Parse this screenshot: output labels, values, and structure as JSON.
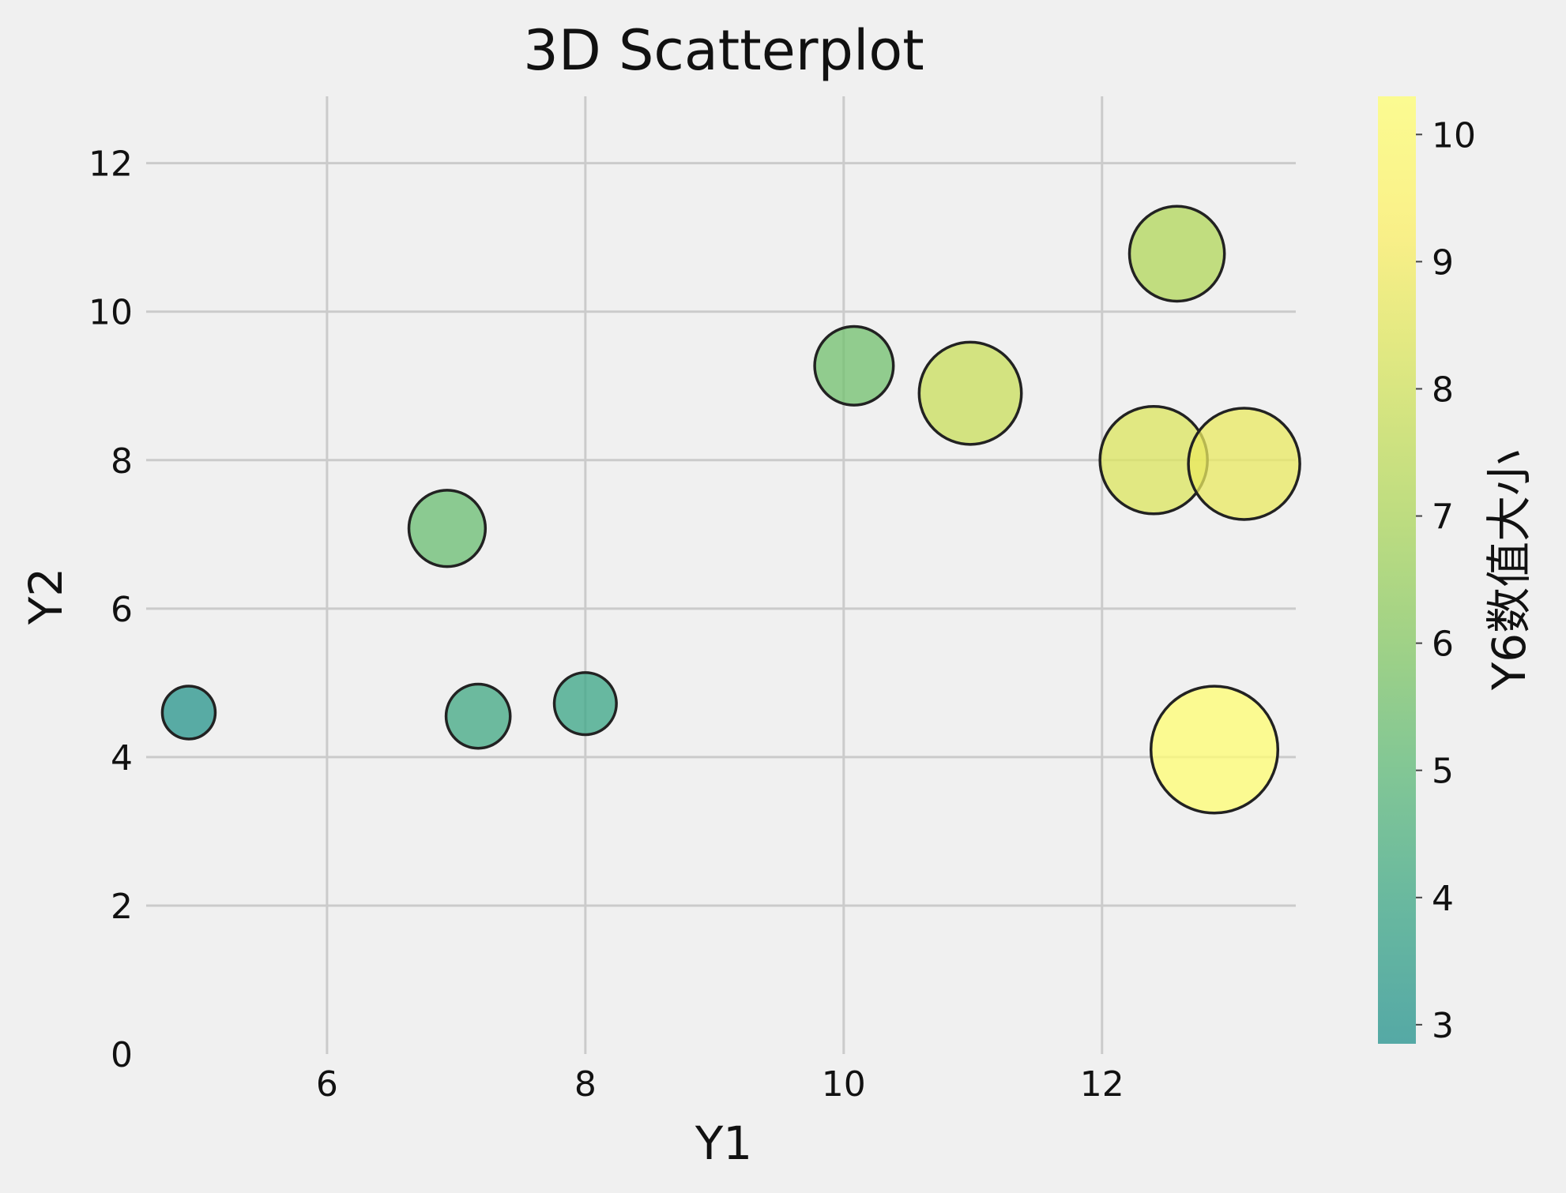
{
  "chart_data": {
    "type": "scatter",
    "title": "3D Scatterplot",
    "xlabel": "Y1",
    "ylabel": "Y2",
    "colorbar_label": "Y6数值大小",
    "xlim": [
      4.6,
      13.5
    ],
    "ylim": [
      0,
      12.9
    ],
    "xticks": [
      6,
      8,
      10,
      12
    ],
    "yticks": [
      0,
      2,
      4,
      6,
      8,
      10,
      12
    ],
    "colorbar_range": [
      2.85,
      10.3
    ],
    "colorbar_ticks": [
      3,
      4,
      5,
      6,
      7,
      8,
      9,
      10
    ],
    "colormap": [
      "#21918c",
      "#3aa585",
      "#5cb877",
      "#86c862",
      "#b2d75a",
      "#d7e45c",
      "#fdf065",
      "#ffff72"
    ],
    "grid": true,
    "points": [
      {
        "x": 4.93,
        "y": 4.6,
        "c": 3.0
      },
      {
        "x": 6.93,
        "y": 7.08,
        "c": 5.3
      },
      {
        "x": 7.17,
        "y": 4.55,
        "c": 4.1
      },
      {
        "x": 8.0,
        "y": 4.72,
        "c": 3.9
      },
      {
        "x": 10.08,
        "y": 9.27,
        "c": 5.5
      },
      {
        "x": 10.98,
        "y": 8.9,
        "c": 7.8
      },
      {
        "x": 12.4,
        "y": 8.0,
        "c": 8.3
      },
      {
        "x": 12.58,
        "y": 10.78,
        "c": 7.1
      },
      {
        "x": 12.87,
        "y": 4.1,
        "c": 10.2
      },
      {
        "x": 13.1,
        "y": 7.95,
        "c": 8.7
      }
    ]
  }
}
